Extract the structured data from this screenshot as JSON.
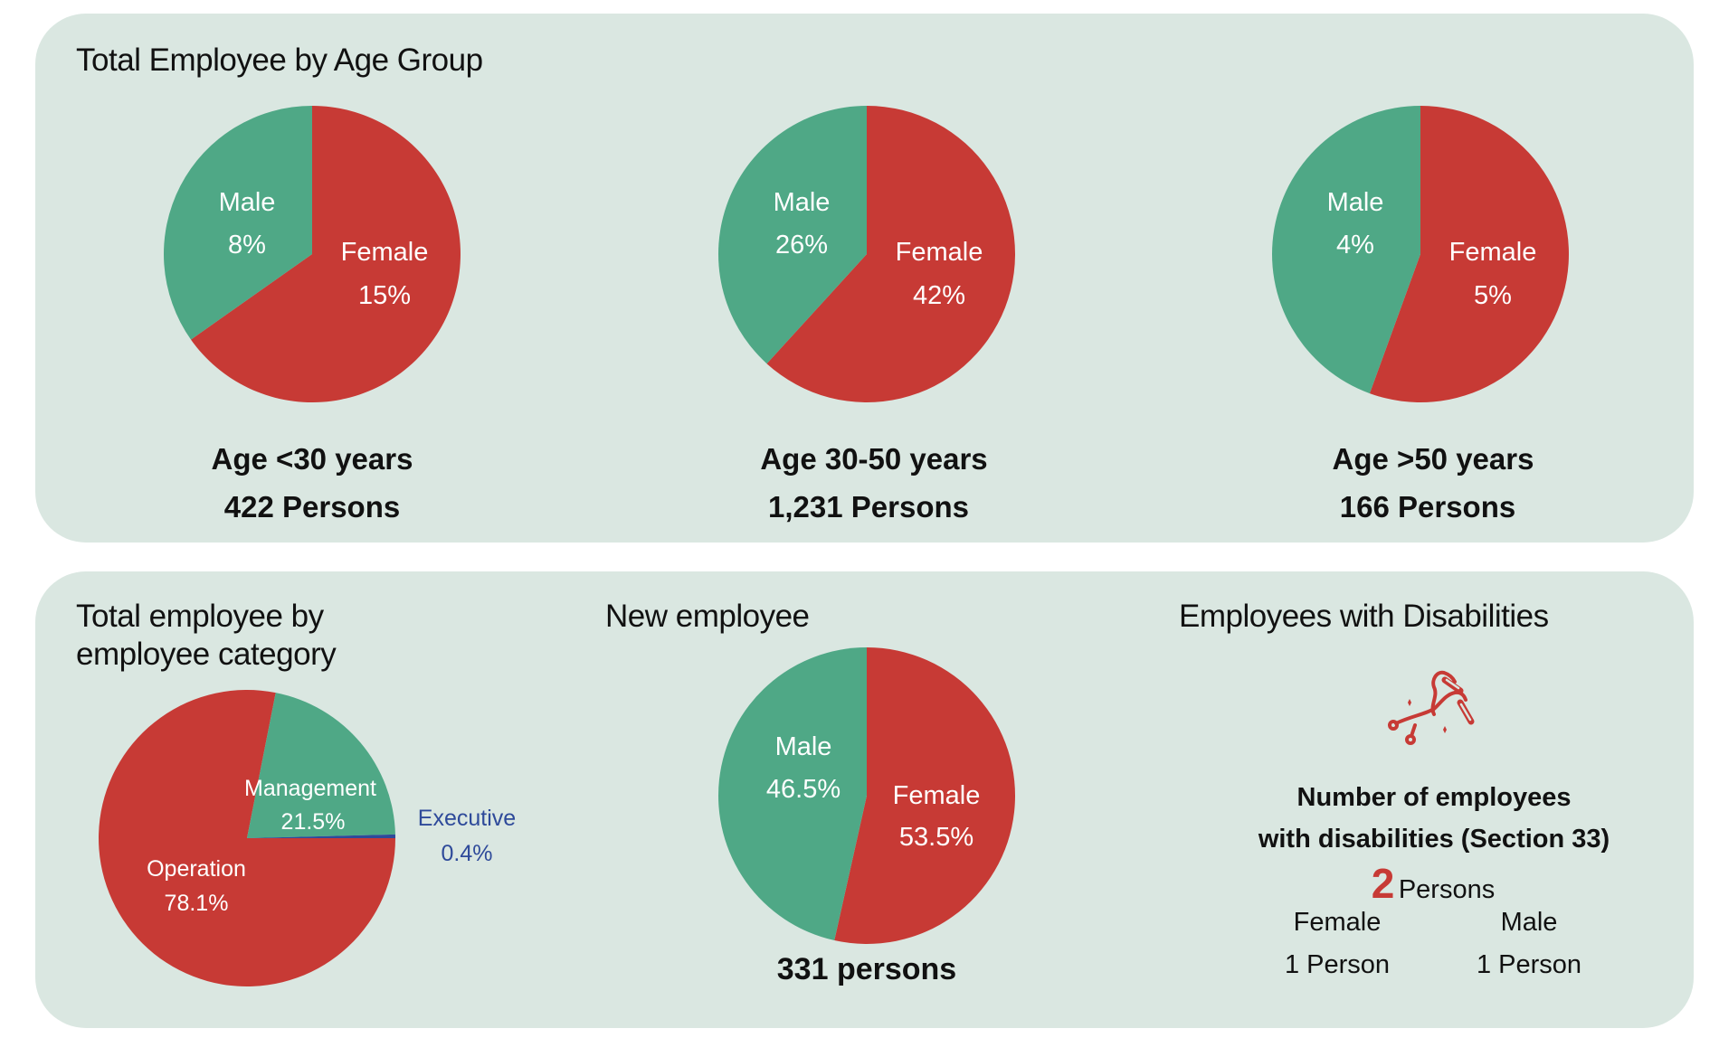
{
  "colors": {
    "panel_bg": "#dae7e1",
    "male": "#4fa886",
    "female": "#c73a35",
    "operation": "#c73a35",
    "management": "#4fa886",
    "executive": "#2e4a9a",
    "icon": "#c73a35"
  },
  "age_section": {
    "title": "Total Employee by Age Group",
    "groups": [
      {
        "caption": "Age <30 years",
        "total": "422 Persons"
      },
      {
        "caption": "Age 30-50 years",
        "total": "1,231 Persons"
      },
      {
        "caption": "Age >50 years",
        "total": "166 Persons"
      }
    ]
  },
  "category_section": {
    "title_line1": "Total employee by",
    "title_line2": "employee category"
  },
  "new_employee_section": {
    "title": "New employee",
    "total": "331 persons"
  },
  "disability_section": {
    "title": "Employees with Disabilities",
    "icon": "crutch-leg-icon",
    "heading_line1": "Number of employees",
    "heading_line2": "with disabilities (Section 33)",
    "count": "2",
    "count_unit": "Persons",
    "female_label": "Female",
    "female_value": "1 Person",
    "male_label": "Male",
    "male_value": "1 Person"
  },
  "chart_data": [
    {
      "type": "pie",
      "title": "Age <30 years",
      "categories": [
        "Male",
        "Female"
      ],
      "values": [
        8,
        15
      ],
      "labels": [
        "8%",
        "15%"
      ],
      "unit": "%"
    },
    {
      "type": "pie",
      "title": "Age 30-50 years",
      "categories": [
        "Male",
        "Female"
      ],
      "values": [
        26,
        42
      ],
      "labels": [
        "26%",
        "42%"
      ],
      "unit": "%"
    },
    {
      "type": "pie",
      "title": "Age >50 years",
      "categories": [
        "Male",
        "Female"
      ],
      "values": [
        4,
        5
      ],
      "labels": [
        "4%",
        "5%"
      ],
      "unit": "%"
    },
    {
      "type": "pie",
      "title": "Total employee by employee category",
      "categories": [
        "Executive",
        "Management",
        "Operation"
      ],
      "values": [
        0.4,
        21.5,
        78.1
      ],
      "labels": [
        "0.4%",
        "21.5%",
        "78.1%"
      ],
      "unit": "%"
    },
    {
      "type": "pie",
      "title": "New employee",
      "categories": [
        "Male",
        "Female"
      ],
      "values": [
        46.5,
        53.5
      ],
      "labels": [
        "46.5%",
        "53.5%"
      ],
      "unit": "%"
    }
  ]
}
